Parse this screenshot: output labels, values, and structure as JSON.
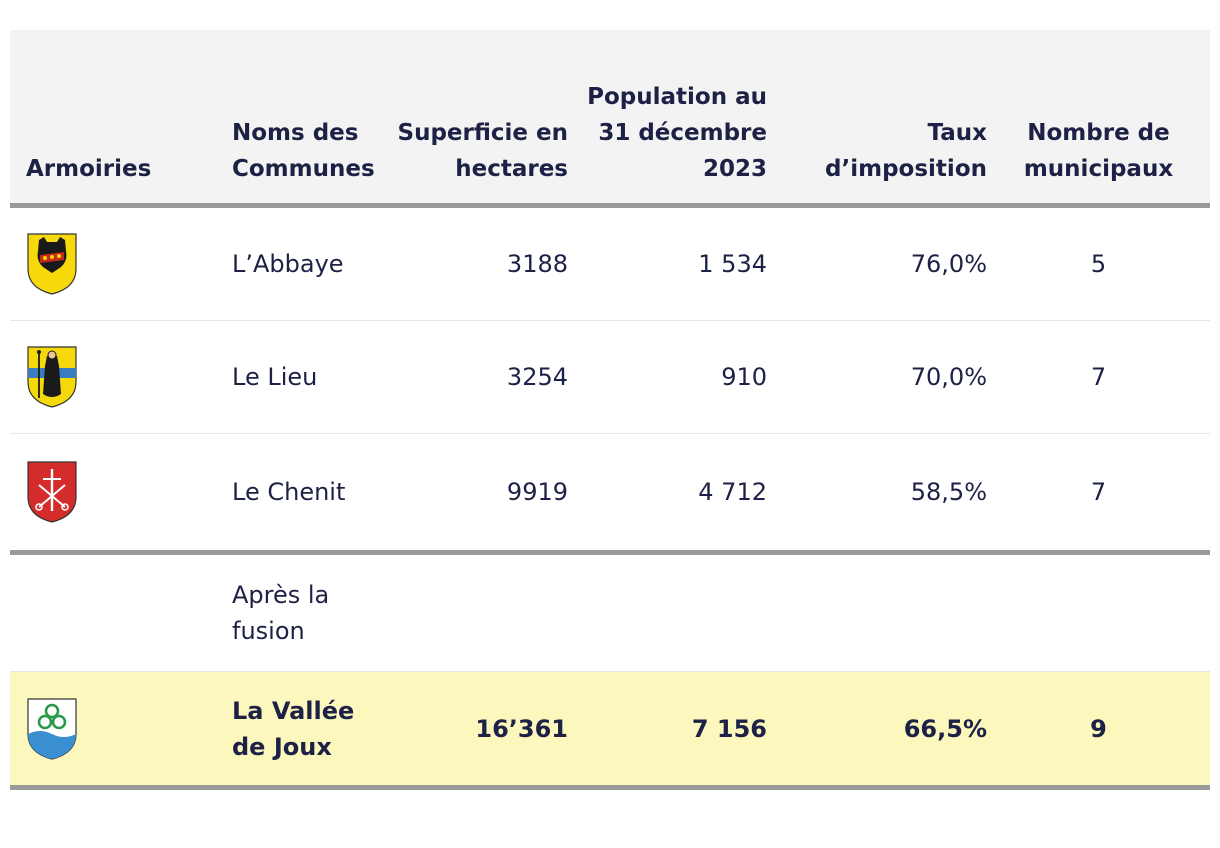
{
  "headers": {
    "armoiries": "Armoiries",
    "noms": "Noms des Communes",
    "superficie": "Superficie en hectares",
    "population": "Population au 31 décembre 2023",
    "taux": "Taux d’imposition",
    "municipaux": "Nombre de municipaux"
  },
  "rows": [
    {
      "name": "L’Abbaye",
      "superficie": "3188",
      "population": "1 534",
      "taux": "76,0%",
      "municipaux": "5",
      "arms_icon": "abbaye-coat-of-arms-icon"
    },
    {
      "name": "Le Lieu",
      "superficie": "3254",
      "population": "910",
      "taux": "70,0%",
      "municipaux": "7",
      "arms_icon": "le-lieu-coat-of-arms-icon"
    },
    {
      "name": "Le Chenit",
      "superficie": "9919",
      "population": "4 712",
      "taux": "58,5%",
      "municipaux": "7",
      "arms_icon": "le-chenit-coat-of-arms-icon"
    }
  ],
  "note": "Après la fusion",
  "total": {
    "name": "La Vallée de Joux",
    "superficie": "16’361",
    "population": "7 156",
    "taux": "66,5%",
    "municipaux": "9",
    "arms_icon": "vallee-de-joux-coat-of-arms-icon"
  },
  "colors": {
    "text": "#1d2145",
    "header_bg": "#f3f3f3",
    "highlight_bg": "#fbf7bd",
    "rule": "#9a9a9a"
  }
}
